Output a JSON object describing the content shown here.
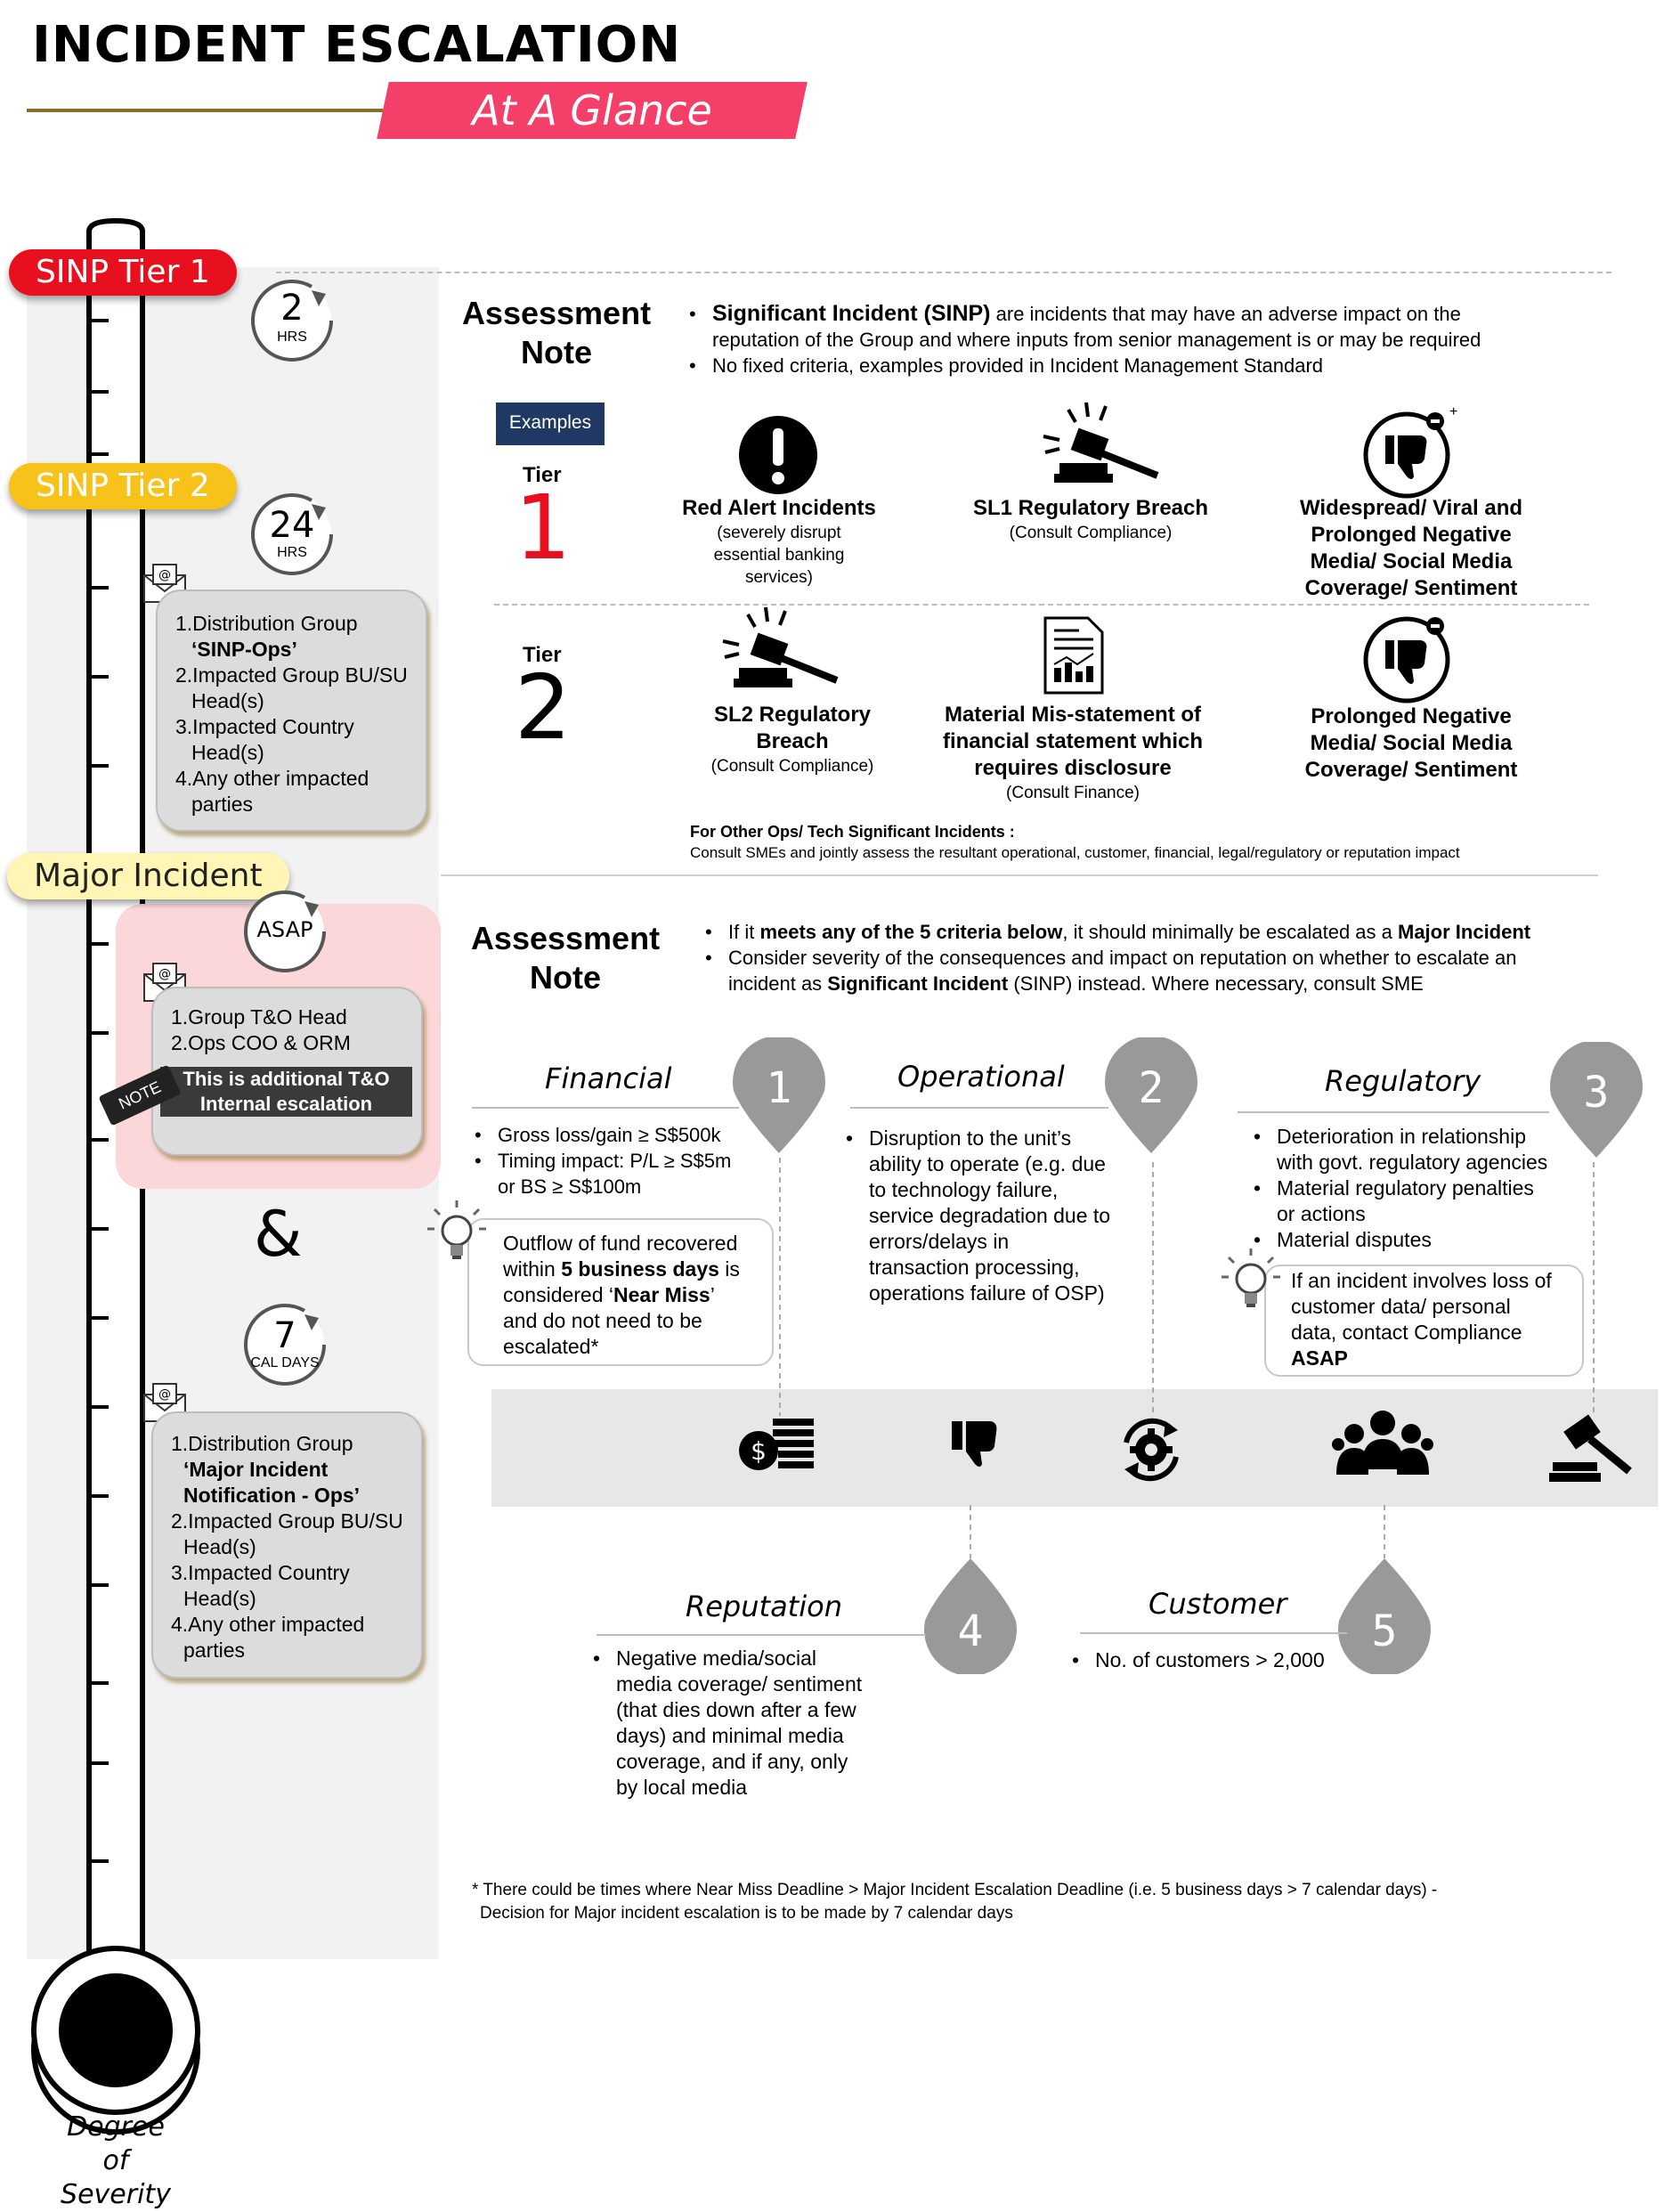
{
  "header": {
    "title": "INCIDENT ESCALATION",
    "subtitle": "At A Glance"
  },
  "colors": {
    "accent": "#f43f68",
    "tier1": "#e8101e",
    "tier2": "#f7c21a",
    "major": "#fff6b5",
    "gold": "#8a6d28"
  },
  "gauge": {
    "label_line1": "Degree of",
    "label_line2": "Severity"
  },
  "tier1": {
    "label": "SINP Tier 1",
    "time_value": "2",
    "time_unit": "HRS"
  },
  "tier2": {
    "label": "SINP Tier 2",
    "time_value": "24",
    "time_unit": "HRS",
    "recipients": [
      "1.Distribution Group",
      "‘SINP-Ops’",
      "2.Impacted Group BU/SU",
      "Head(s)",
      "3.Impacted Country",
      "Head(s)",
      "4.Any other impacted",
      "parties"
    ]
  },
  "major": {
    "label": "Major Incident",
    "time_value": "ASAP",
    "recipients": [
      "1.Group T&O Head",
      "2.Ops COO & ORM"
    ],
    "note_tag": "NOTE",
    "note_text_line1": "This is additional T&O",
    "note_text_line2": "Internal escalation",
    "ampersand": "&",
    "time2_value": "7",
    "time2_unit": "CAL DAYS",
    "recipients2": [
      "1.Distribution Group",
      "‘Major Incident",
      "Notification - Ops’",
      "2.Impacted Group BU/SU",
      "Head(s)",
      "3.Impacted Country",
      "Head(s)",
      "4.Any other impacted",
      "parties"
    ]
  },
  "sinp_section": {
    "heading_line1": "Assessment",
    "heading_line2": "Note",
    "bullet1_bold": "Significant Incident (SINP)",
    "bullet1_rest": " are incidents that may have an adverse impact on the",
    "bullet1_line2": "reputation of the Group and where inputs from senior management is or may be required",
    "bullet2": "No fixed criteria, examples provided in Incident Management Standard",
    "examples_label": "Examples",
    "tier_word": "Tier",
    "tier1_num": "1",
    "tier2_num": "2",
    "tier1_examples": [
      {
        "title": "Red Alert Incidents",
        "sub1": "(severely disrupt",
        "sub2": "essential banking",
        "sub3": "services)"
      },
      {
        "title": "SL1 Regulatory Breach",
        "sub1": "(Consult Compliance)"
      },
      {
        "title1": "Widespread/ Viral and",
        "title2": "Prolonged Negative",
        "title3": "Media/ Social Media",
        "title4": "Coverage/ Sentiment"
      }
    ],
    "tier2_examples": [
      {
        "title1": "SL2 Regulatory",
        "title2": "Breach",
        "sub1": "(Consult Compliance)"
      },
      {
        "title1": "Material Mis-statement of",
        "title2": "financial statement which",
        "title3": "requires disclosure",
        "sub1": "(Consult Finance)"
      },
      {
        "title1": "Prolonged Negative",
        "title2": "Media/ Social Media",
        "title3": "Coverage/ Sentiment"
      }
    ],
    "other_title": "For Other Ops/ Tech Significant Incidents :",
    "other_text": "Consult SMEs and jointly assess the resultant operational, customer, financial, legal/regulatory or reputation impact"
  },
  "major_section": {
    "heading_line1": "Assessment",
    "heading_line2": "Note",
    "b1_a": "If it ",
    "b1_b": "meets any of the 5 criteria below",
    "b1_c": ", it should minimally be escalated as a ",
    "b1_d": "Major Incident",
    "b2_line1": "Consider severity of the consequences and impact on reputation on whether to escalate an",
    "b2_line2a": "incident as ",
    "b2_line2b": "Significant Incident",
    "b2_line2c": " (SINP) instead. Where necessary, consult SME",
    "criteria": [
      {
        "num": "1",
        "name": "Financial",
        "items": [
          "Gross loss/gain ≥ S$500k",
          "Timing impact: P/L ≥ S$5m",
          "or BS ≥ S$100m"
        ]
      },
      {
        "num": "2",
        "name": "Operational",
        "items": [
          "Disruption to the unit’s",
          "ability to operate (e.g. due",
          "to technology failure,",
          "service degradation due to",
          "errors/delays in",
          "transaction processing,",
          "operations failure of OSP)"
        ]
      },
      {
        "num": "3",
        "name": "Regulatory",
        "items": [
          "Deterioration in relationship",
          "with govt. regulatory agencies",
          "Material regulatory penalties",
          "or actions",
          "Material disputes"
        ]
      },
      {
        "num": "4",
        "name": "Reputation",
        "items": [
          "Negative media/social",
          "media coverage/ sentiment",
          "(that dies down after a few",
          "days) and minimal media",
          "coverage, and if any, only",
          "by local media"
        ]
      },
      {
        "num": "5",
        "name": "Customer",
        "items": [
          "No. of customers > 2,000"
        ]
      }
    ],
    "fin_tip": {
      "l1": "Outflow of fund recovered",
      "l2a": "within ",
      "l2b": "5 business days",
      "l2c": " is",
      "l3a": "considered ‘",
      "l3b": "Near Miss",
      "l3c": "’",
      "l4": "and do not need to be",
      "l5": "escalated*"
    },
    "reg_tip": {
      "l1": "If an incident involves loss of",
      "l2": "customer data/ personal",
      "l3": "data, contact Compliance",
      "l4": "ASAP"
    },
    "footnote1": "* There could be times where Near Miss Deadline > Major Incident Escalation Deadline (i.e. 5 business days > 7 calendar days) -",
    "footnote2": "Decision for Major incident escalation is to be made by 7 calendar days"
  }
}
